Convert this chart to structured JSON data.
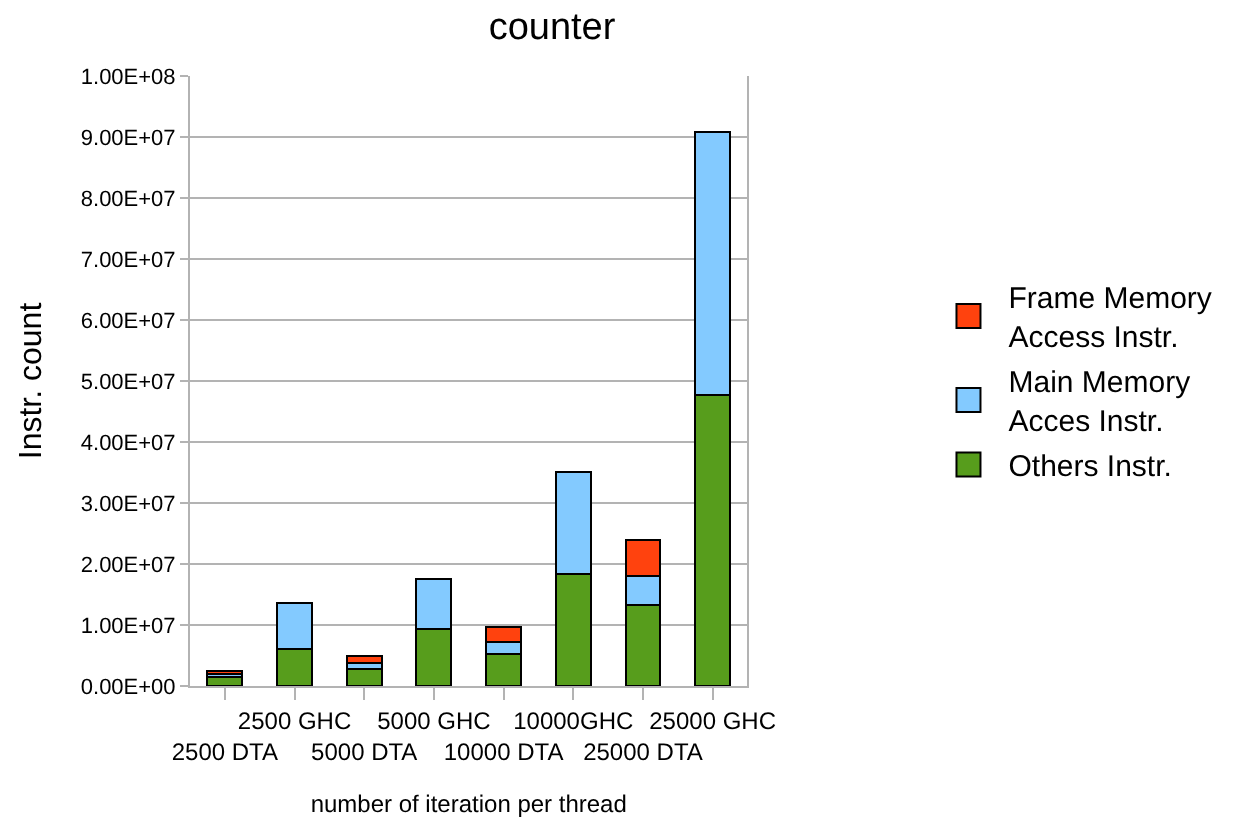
{
  "chart_data": {
    "type": "bar",
    "title": "counter",
    "xlabel": "number of iteration per thread",
    "ylabel": "Instr. count",
    "categories": [
      "2500 DTA",
      "2500 GHC",
      "5000 DTA",
      "5000 GHC",
      "10000 DTA",
      "10000GHC",
      "25000 DTA",
      "25000 GHC"
    ],
    "stacked": true,
    "grid": "y",
    "legend": "right",
    "ylim": [
      0,
      100000000
    ],
    "yticks": [
      {
        "value": 0,
        "label": "0.00E+00"
      },
      {
        "value": 10000000,
        "label": "1.00E+07"
      },
      {
        "value": 20000000,
        "label": "2.00E+07"
      },
      {
        "value": 30000000,
        "label": "3.00E+07"
      },
      {
        "value": 40000000,
        "label": "4.00E+07"
      },
      {
        "value": 50000000,
        "label": "5.00E+07"
      },
      {
        "value": 60000000,
        "label": "6.00E+07"
      },
      {
        "value": 70000000,
        "label": "7.00E+07"
      },
      {
        "value": 80000000,
        "label": "8.00E+07"
      },
      {
        "value": 90000000,
        "label": "9.00E+07"
      },
      {
        "value": 100000000,
        "label": "1.00E+08"
      }
    ],
    "series": [
      {
        "name": "Others Instr.",
        "color": "#579d1c",
        "values": [
          1500000,
          6100000,
          2800000,
          9300000,
          5200000,
          18400000,
          13200000,
          47700000
        ]
      },
      {
        "name": "Main Memory Acces Instr.",
        "color": "#83caff",
        "values": [
          400000,
          7500000,
          1000000,
          8300000,
          2000000,
          16700000,
          4900000,
          43200000
        ]
      },
      {
        "name": "Frame Memory Access Instr.",
        "color": "#ff420e",
        "values": [
          500000,
          null,
          1100000,
          null,
          2500000,
          null,
          5800000,
          null
        ]
      }
    ]
  }
}
